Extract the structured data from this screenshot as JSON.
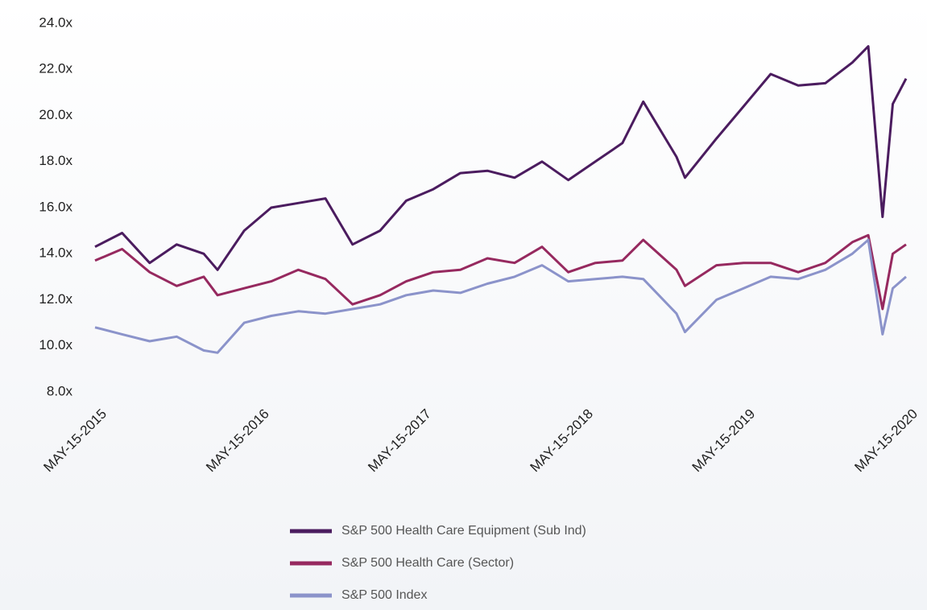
{
  "chart_data": {
    "type": "line",
    "x": [
      "2015-05-15",
      "2015-07-15",
      "2015-09-15",
      "2015-11-15",
      "2016-01-15",
      "2016-02-15",
      "2016-04-15",
      "2016-06-15",
      "2016-08-15",
      "2016-10-15",
      "2016-12-15",
      "2017-02-15",
      "2017-04-15",
      "2017-06-15",
      "2017-08-15",
      "2017-10-15",
      "2017-12-15",
      "2018-02-15",
      "2018-04-15",
      "2018-06-15",
      "2018-08-15",
      "2018-10-01",
      "2018-12-15",
      "2019-01-03",
      "2019-03-15",
      "2019-05-15",
      "2019-07-15",
      "2019-09-15",
      "2019-11-15",
      "2020-01-15",
      "2020-02-20",
      "2020-03-23",
      "2020-04-15",
      "2020-05-15"
    ],
    "series": [
      {
        "name": "S&P 500 Health Care Equipment (Sub Ind)",
        "color": "#4b1c5f",
        "values": [
          14.3,
          14.9,
          13.6,
          14.4,
          14.0,
          13.3,
          15.0,
          16.0,
          16.2,
          16.4,
          14.4,
          15.0,
          16.3,
          16.8,
          17.5,
          17.6,
          17.3,
          18.0,
          17.2,
          18.0,
          18.8,
          20.6,
          18.2,
          17.3,
          19.0,
          20.4,
          21.8,
          21.3,
          21.4,
          22.3,
          23.0,
          15.6,
          20.5,
          21.6
        ]
      },
      {
        "name": "S&P 500 Health Care (Sector)",
        "color": "#96295f",
        "values": [
          13.7,
          14.2,
          13.2,
          12.6,
          13.0,
          12.2,
          12.5,
          12.8,
          13.3,
          12.9,
          11.8,
          12.2,
          12.8,
          13.2,
          13.3,
          13.8,
          13.6,
          14.3,
          13.2,
          13.6,
          13.7,
          14.6,
          13.3,
          12.6,
          13.5,
          13.6,
          13.6,
          13.2,
          13.6,
          14.5,
          14.8,
          11.6,
          14.0,
          14.4
        ]
      },
      {
        "name": "S&P 500 Index",
        "color": "#8b93ca",
        "values": [
          10.8,
          10.5,
          10.2,
          10.4,
          9.8,
          9.7,
          11.0,
          11.3,
          11.5,
          11.4,
          11.6,
          11.8,
          12.2,
          12.4,
          12.3,
          12.7,
          13.0,
          13.5,
          12.8,
          12.9,
          13.0,
          12.9,
          11.4,
          10.6,
          12.0,
          12.5,
          13.0,
          12.9,
          13.3,
          14.0,
          14.6,
          10.5,
          12.5,
          13.0
        ]
      }
    ],
    "xlim": [
      "2015-05-15",
      "2020-05-15"
    ],
    "xticks": [
      {
        "value": "2015-05-15",
        "label": "MAY-15-2015"
      },
      {
        "value": "2016-05-15",
        "label": "MAY-15-2016"
      },
      {
        "value": "2017-05-15",
        "label": "MAY-15-2017"
      },
      {
        "value": "2018-05-15",
        "label": "MAY-15-2018"
      },
      {
        "value": "2019-05-15",
        "label": "MAY-15-2019"
      },
      {
        "value": "2020-05-15",
        "label": "MAY-15-2020"
      }
    ],
    "ylim": [
      8,
      24
    ],
    "yticks": [
      {
        "value": 8,
        "label": "8.0x"
      },
      {
        "value": 10,
        "label": "10.0x"
      },
      {
        "value": 12,
        "label": "12.0x"
      },
      {
        "value": 14,
        "label": "14.0x"
      },
      {
        "value": 16,
        "label": "16.0x"
      },
      {
        "value": 18,
        "label": "18.0x"
      },
      {
        "value": 20,
        "label": "20.0x"
      },
      {
        "value": 22,
        "label": "22.0x"
      },
      {
        "value": 24,
        "label": "24.0x"
      }
    ],
    "grid": false
  }
}
